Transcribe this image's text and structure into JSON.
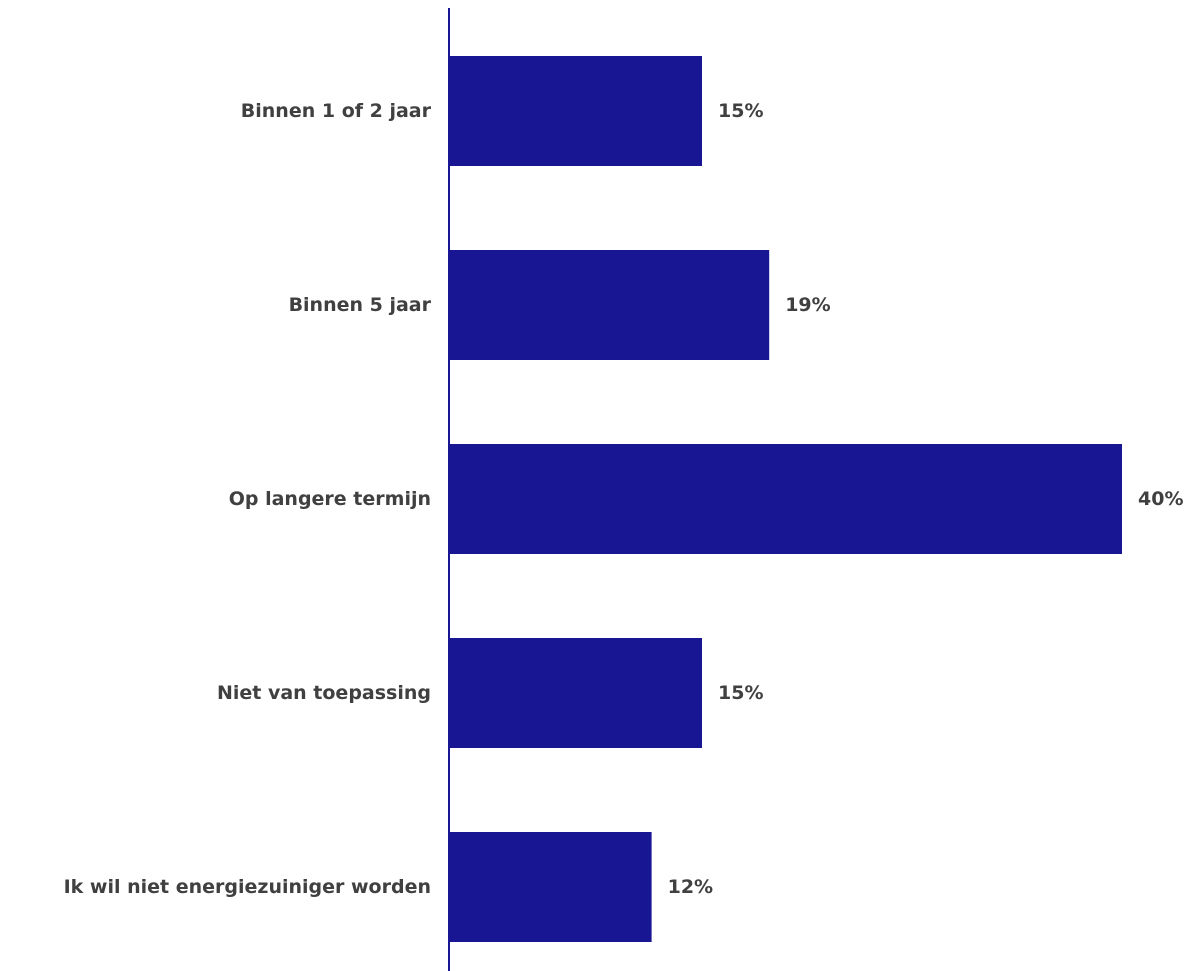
{
  "chart_data": {
    "type": "bar",
    "orientation": "horizontal",
    "categories": [
      "Binnen 1 of 2 jaar",
      "Binnen 5 jaar",
      "Op langere termijn",
      "Niet van toepassing",
      "Ik wil niet energiezuiniger worden"
    ],
    "values": [
      15,
      19,
      40,
      15,
      12
    ],
    "value_labels": [
      "15%",
      "19%",
      "40%",
      "15%",
      "12%"
    ],
    "unit": "%",
    "xlim": [
      0,
      40
    ],
    "grid": false,
    "legend": "none",
    "colors": {
      "bar": "#191694",
      "axis": "#191694",
      "text": "#404040"
    }
  }
}
